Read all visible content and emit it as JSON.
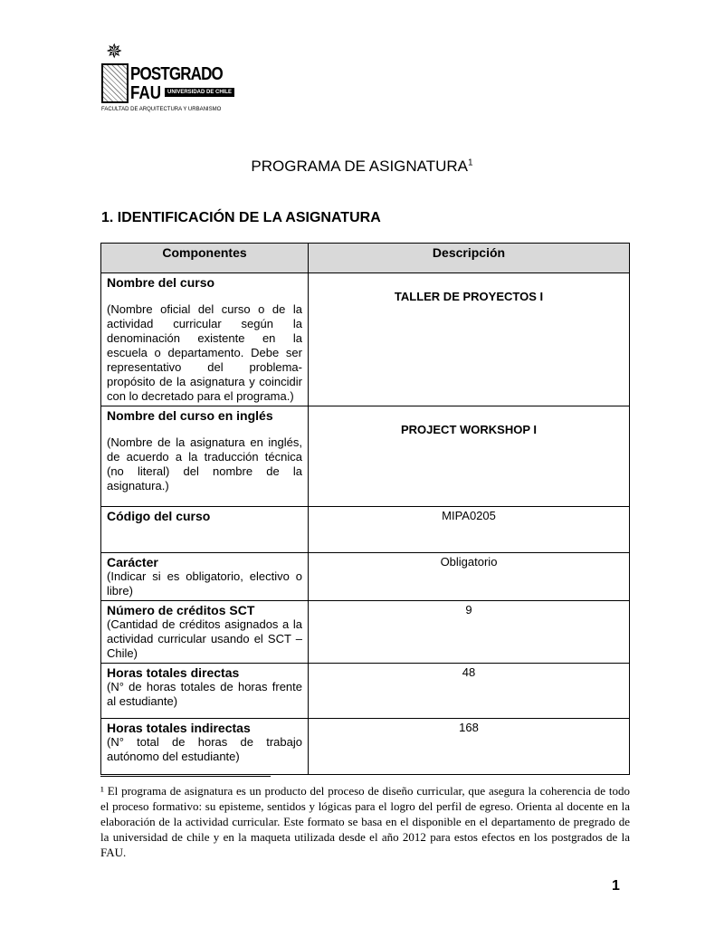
{
  "logo": {
    "main": "POSTGRADO",
    "sub": "FAU",
    "badge": "UNIVERSIDAD DE CHILE",
    "faculty": "FACULTAD DE ARQUITECTURA Y URBANISMO"
  },
  "title": "PROGRAMA DE ASIGNATURA",
  "title_sup": "1",
  "section": "1. IDENTIFICACIÓN DE LA ASIGNATURA",
  "table": {
    "headers": [
      "Componentes",
      "Descripción"
    ],
    "rows": [
      {
        "label": "Nombre del curso",
        "desc": "(Nombre oficial del curso o de la actividad curricular según la denominación existente en la escuela o departamento. Debe ser representativo del problema-propósito de la asignatura y coincidir con lo decretado para el programa.)",
        "value": "TALLER DE PROYECTOS I"
      },
      {
        "label": "Nombre del curso en inglés",
        "desc": "(Nombre de la asignatura en inglés, de acuerdo a la traducción técnica (no literal) del nombre de la asignatura.)",
        "value": "PROJECT WORKSHOP I"
      },
      {
        "label": "Código del curso",
        "desc": "",
        "value": "MIPA0205"
      },
      {
        "label": "Carácter",
        "desc": "(Indicar si es obligatorio, electivo o libre)",
        "value": "Obligatorio"
      },
      {
        "label": "Número de créditos SCT",
        "desc": "(Cantidad de créditos asignados a la actividad curricular usando el SCT – Chile)",
        "value": "9"
      },
      {
        "label": "Horas totales directas",
        "desc": "(N° de horas totales de horas frente al estudiante)",
        "value": "48"
      },
      {
        "label": "Horas totales indirectas",
        "desc": "(N° total de horas de trabajo autónomo del estudiante)",
        "value": "168"
      }
    ]
  },
  "footnote": "¹ El programa de asignatura es un producto del proceso de diseño curricular, que asegura la coherencia de todo el proceso formativo: su episteme, sentidos y lógicas para el logro del perfil de egreso. Orienta al docente en la elaboración de la actividad curricular. Este formato se basa en el disponible en el departamento de pregrado de la universidad de chile y en la maqueta utilizada desde el año 2012 para estos efectos en los postgrados de la FAU.",
  "page_number": "1"
}
